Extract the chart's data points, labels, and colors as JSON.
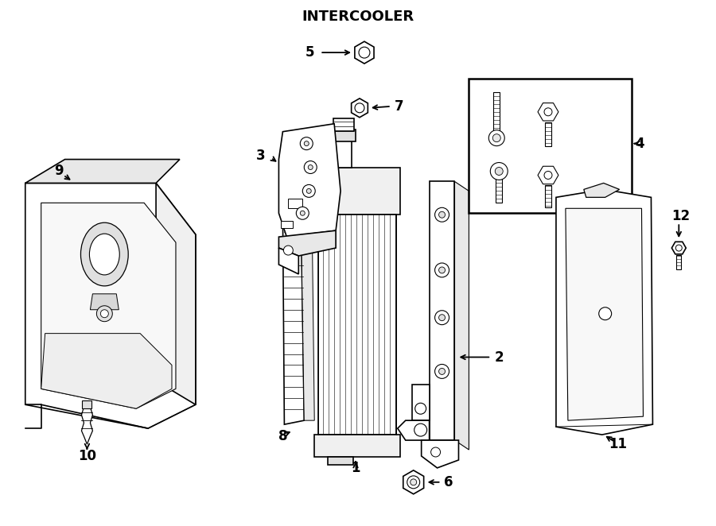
{
  "title": "INTERCOOLER",
  "bg_color": "#ffffff",
  "line_color": "#000000",
  "figsize": [
    9.0,
    6.62
  ],
  "dpi": 100
}
